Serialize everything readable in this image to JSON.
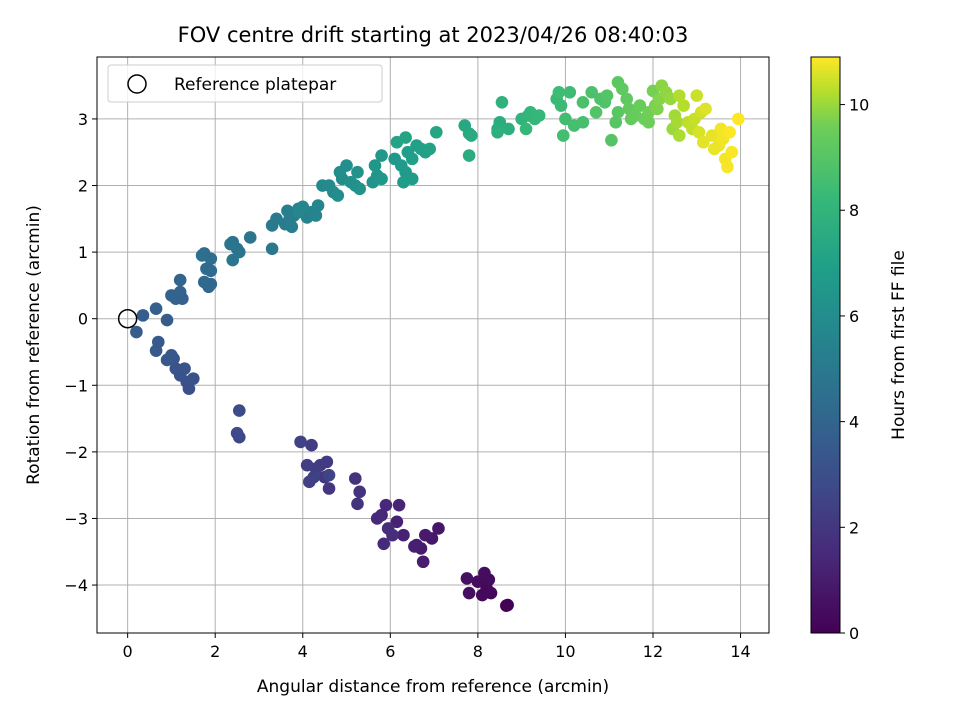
{
  "chart_data": {
    "type": "scatter",
    "title": "FOV centre drift starting at 2023/04/26 08:40:03",
    "xlabel": "Angular distance from reference (arcmin)",
    "ylabel": "Rotation from reference (arcmin)",
    "xlim": [
      -0.7,
      14.65
    ],
    "ylim": [
      -4.72,
      3.93
    ],
    "xticks": [
      0,
      2,
      4,
      6,
      8,
      10,
      12,
      14
    ],
    "yticks": [
      -4,
      -3,
      -2,
      -1,
      0,
      1,
      2,
      3
    ],
    "grid": true,
    "legend": {
      "placement": "top-left",
      "entries": [
        "Reference platepar"
      ]
    },
    "reference_point": {
      "x": 0,
      "y": 0
    },
    "colorbar": {
      "label": "Hours from first FF file",
      "range": [
        0,
        10.9
      ],
      "ticks": [
        0,
        2,
        4,
        6,
        8,
        10
      ],
      "colormap": "viridis"
    },
    "series": [
      {
        "color_by": "hours",
        "points": [
          [
            8.65,
            -4.31,
            0.0
          ],
          [
            8.68,
            -4.3,
            0.05
          ],
          [
            8.3,
            -4.12,
            0.2
          ],
          [
            8.2,
            -4.05,
            0.25
          ],
          [
            8.1,
            -4.15,
            0.3
          ],
          [
            8.25,
            -3.92,
            0.35
          ],
          [
            8.0,
            -3.95,
            0.4
          ],
          [
            8.15,
            -3.82,
            0.45
          ],
          [
            7.8,
            -4.12,
            0.5
          ],
          [
            7.75,
            -3.9,
            0.55
          ],
          [
            7.1,
            -3.15,
            0.8
          ],
          [
            6.95,
            -3.3,
            0.85
          ],
          [
            6.8,
            -3.25,
            0.9
          ],
          [
            6.7,
            -3.45,
            0.95
          ],
          [
            6.6,
            -3.4,
            1.0
          ],
          [
            6.75,
            -3.65,
            1.05
          ],
          [
            6.55,
            -3.42,
            1.1
          ],
          [
            6.3,
            -3.25,
            1.2
          ],
          [
            6.15,
            -3.05,
            1.25
          ],
          [
            6.2,
            -2.8,
            1.3
          ],
          [
            5.9,
            -2.8,
            1.4
          ],
          [
            5.8,
            -2.95,
            1.45
          ],
          [
            5.7,
            -3.0,
            1.5
          ],
          [
            5.85,
            -3.38,
            1.55
          ],
          [
            5.95,
            -3.15,
            1.6
          ],
          [
            6.05,
            -3.25,
            1.65
          ],
          [
            5.2,
            -2.4,
            1.8
          ],
          [
            5.3,
            -2.6,
            1.85
          ],
          [
            5.25,
            -2.78,
            1.9
          ],
          [
            4.6,
            -2.55,
            2.0
          ],
          [
            4.5,
            -2.38,
            2.05
          ],
          [
            4.4,
            -2.2,
            2.1
          ],
          [
            4.55,
            -2.15,
            2.15
          ],
          [
            4.3,
            -2.25,
            2.2
          ],
          [
            4.2,
            -1.9,
            2.25
          ],
          [
            4.1,
            -2.2,
            2.3
          ],
          [
            4.15,
            -2.45,
            2.35
          ],
          [
            4.25,
            -2.38,
            2.4
          ],
          [
            3.95,
            -1.85,
            2.45
          ],
          [
            4.6,
            -2.35,
            2.5
          ],
          [
            2.55,
            -1.78,
            2.7
          ],
          [
            2.5,
            -1.72,
            2.75
          ],
          [
            2.55,
            -1.38,
            2.8
          ],
          [
            1.4,
            -1.05,
            3.0
          ],
          [
            1.35,
            -0.95,
            3.05
          ],
          [
            1.5,
            -0.9,
            3.1
          ],
          [
            1.2,
            -0.85,
            3.15
          ],
          [
            1.1,
            -0.75,
            3.2
          ],
          [
            1.3,
            -0.75,
            3.25
          ],
          [
            1.05,
            -0.6,
            3.3
          ],
          [
            1.0,
            -0.55,
            3.35
          ],
          [
            0.9,
            -0.62,
            3.4
          ],
          [
            0.7,
            -0.35,
            3.45
          ],
          [
            0.65,
            -0.48,
            3.5
          ],
          [
            0.9,
            -0.02,
            3.6
          ],
          [
            0.2,
            -0.2,
            3.65
          ],
          [
            0.35,
            0.05,
            3.7
          ],
          [
            0.65,
            0.15,
            3.75
          ],
          [
            1.25,
            0.3,
            3.8
          ],
          [
            1.1,
            0.3,
            3.85
          ],
          [
            1.2,
            0.4,
            3.9
          ],
          [
            1.0,
            0.35,
            3.95
          ],
          [
            1.2,
            0.58,
            4.0
          ],
          [
            1.85,
            0.48,
            4.1
          ],
          [
            1.75,
            0.55,
            4.15
          ],
          [
            1.9,
            0.52,
            4.2
          ],
          [
            1.9,
            0.72,
            4.25
          ],
          [
            1.8,
            0.75,
            4.3
          ],
          [
            1.9,
            0.9,
            4.35
          ],
          [
            1.75,
            0.98,
            4.4
          ],
          [
            1.7,
            0.95,
            4.45
          ],
          [
            2.5,
            1.05,
            4.6
          ],
          [
            2.4,
            1.15,
            4.65
          ],
          [
            2.55,
            1.0,
            4.7
          ],
          [
            2.35,
            1.12,
            4.75
          ],
          [
            2.4,
            0.88,
            4.8
          ],
          [
            2.8,
            1.22,
            4.85
          ],
          [
            3.3,
            1.05,
            4.9
          ],
          [
            3.3,
            1.4,
            5.0
          ],
          [
            3.4,
            1.5,
            5.05
          ],
          [
            3.6,
            1.42,
            5.1
          ],
          [
            3.7,
            1.5,
            5.15
          ],
          [
            3.75,
            1.38,
            5.2
          ],
          [
            3.8,
            1.55,
            5.25
          ],
          [
            3.65,
            1.62,
            5.3
          ],
          [
            3.9,
            1.65,
            5.35
          ],
          [
            4.0,
            1.6,
            5.4
          ],
          [
            4.1,
            1.52,
            5.45
          ],
          [
            4.2,
            1.6,
            5.5
          ],
          [
            4.3,
            1.55,
            5.55
          ],
          [
            4.35,
            1.7,
            5.6
          ],
          [
            4.0,
            1.68,
            5.65
          ],
          [
            3.9,
            1.6,
            5.7
          ],
          [
            4.45,
            2.0,
            5.8
          ],
          [
            4.6,
            2.0,
            5.85
          ],
          [
            4.7,
            1.9,
            5.9
          ],
          [
            4.8,
            1.85,
            5.95
          ],
          [
            4.9,
            2.1,
            6.0
          ],
          [
            4.85,
            2.2,
            6.05
          ],
          [
            5.0,
            2.3,
            6.1
          ],
          [
            5.2,
            2.0,
            6.15
          ],
          [
            5.1,
            2.05,
            6.2
          ],
          [
            5.3,
            1.95,
            6.25
          ],
          [
            5.25,
            2.2,
            6.3
          ],
          [
            5.6,
            2.05,
            6.35
          ],
          [
            5.7,
            2.15,
            6.4
          ],
          [
            5.8,
            2.1,
            6.45
          ],
          [
            5.65,
            2.3,
            6.5
          ],
          [
            5.8,
            2.45,
            6.55
          ],
          [
            6.1,
            2.4,
            6.6
          ],
          [
            6.25,
            2.3,
            6.65
          ],
          [
            6.35,
            2.2,
            6.7
          ],
          [
            6.5,
            2.1,
            6.75
          ],
          [
            6.3,
            2.05,
            6.8
          ],
          [
            6.4,
            2.5,
            6.85
          ],
          [
            6.5,
            2.4,
            6.9
          ],
          [
            6.6,
            2.6,
            6.95
          ],
          [
            6.7,
            2.55,
            7.0
          ],
          [
            6.8,
            2.5,
            7.05
          ],
          [
            6.9,
            2.55,
            7.1
          ],
          [
            6.15,
            2.65,
            7.15
          ],
          [
            6.35,
            2.72,
            7.2
          ],
          [
            7.05,
            2.8,
            7.25
          ],
          [
            7.7,
            2.9,
            7.4
          ],
          [
            7.8,
            2.78,
            7.45
          ],
          [
            7.85,
            2.75,
            7.5
          ],
          [
            7.8,
            2.45,
            7.55
          ],
          [
            8.45,
            2.85,
            7.6
          ],
          [
            8.5,
            2.95,
            7.65
          ],
          [
            8.7,
            2.85,
            7.7
          ],
          [
            8.45,
            2.8,
            7.75
          ],
          [
            8.55,
            3.25,
            7.85
          ],
          [
            9.0,
            3.0,
            7.95
          ],
          [
            9.15,
            3.05,
            8.0
          ],
          [
            9.2,
            3.1,
            8.05
          ],
          [
            9.3,
            3.0,
            8.1
          ],
          [
            9.4,
            3.05,
            8.15
          ],
          [
            9.1,
            2.85,
            8.2
          ],
          [
            9.8,
            3.3,
            8.3
          ],
          [
            9.9,
            3.2,
            8.35
          ],
          [
            9.85,
            3.4,
            8.4
          ],
          [
            10.1,
            3.4,
            8.45
          ],
          [
            10.0,
            3.0,
            8.5
          ],
          [
            9.95,
            2.75,
            8.55
          ],
          [
            10.2,
            2.9,
            8.6
          ],
          [
            10.4,
            2.95,
            8.65
          ],
          [
            10.4,
            3.25,
            8.7
          ],
          [
            10.6,
            3.4,
            8.75
          ],
          [
            10.8,
            3.3,
            8.8
          ],
          [
            10.9,
            3.25,
            8.85
          ],
          [
            10.7,
            3.1,
            8.9
          ],
          [
            10.95,
            3.35,
            8.95
          ],
          [
            11.05,
            2.68,
            9.0
          ],
          [
            11.15,
            2.95,
            9.05
          ],
          [
            11.2,
            3.1,
            9.1
          ],
          [
            11.2,
            3.55,
            9.15
          ],
          [
            11.3,
            3.45,
            9.2
          ],
          [
            11.4,
            3.3,
            9.25
          ],
          [
            11.45,
            3.15,
            9.3
          ],
          [
            11.5,
            3.0,
            9.35
          ],
          [
            11.6,
            3.05,
            9.4
          ],
          [
            11.7,
            3.2,
            9.45
          ],
          [
            11.8,
            3.0,
            9.5
          ],
          [
            11.9,
            2.95,
            9.55
          ],
          [
            11.9,
            3.1,
            9.6
          ],
          [
            12.0,
            3.42,
            9.65
          ],
          [
            12.05,
            3.2,
            9.7
          ],
          [
            12.1,
            3.15,
            9.75
          ],
          [
            12.15,
            3.3,
            9.8
          ],
          [
            12.2,
            3.5,
            9.85
          ],
          [
            12.3,
            3.4,
            9.9
          ],
          [
            12.4,
            3.3,
            9.95
          ],
          [
            12.45,
            2.85,
            10.0
          ],
          [
            12.5,
            3.05,
            10.05
          ],
          [
            12.55,
            2.95,
            10.1
          ],
          [
            12.6,
            2.75,
            10.15
          ],
          [
            12.6,
            3.35,
            10.2
          ],
          [
            12.7,
            3.2,
            10.25
          ],
          [
            12.8,
            2.95,
            10.3
          ],
          [
            12.9,
            2.85,
            10.35
          ],
          [
            12.95,
            3.0,
            10.4
          ],
          [
            13.0,
            3.35,
            10.45
          ],
          [
            13.1,
            3.1,
            10.5
          ],
          [
            13.05,
            2.8,
            10.55
          ],
          [
            13.2,
            3.15,
            10.6
          ],
          [
            13.15,
            2.65,
            10.65
          ],
          [
            13.35,
            2.75,
            10.7
          ],
          [
            13.4,
            2.55,
            10.72
          ],
          [
            13.5,
            2.6,
            10.75
          ],
          [
            13.6,
            2.7,
            10.78
          ],
          [
            13.55,
            2.85,
            10.8
          ],
          [
            13.65,
            2.4,
            10.82
          ],
          [
            13.7,
            2.28,
            10.84
          ],
          [
            13.8,
            2.5,
            10.86
          ],
          [
            13.75,
            2.8,
            10.88
          ],
          [
            13.95,
            3.0,
            10.9
          ]
        ]
      }
    ]
  }
}
